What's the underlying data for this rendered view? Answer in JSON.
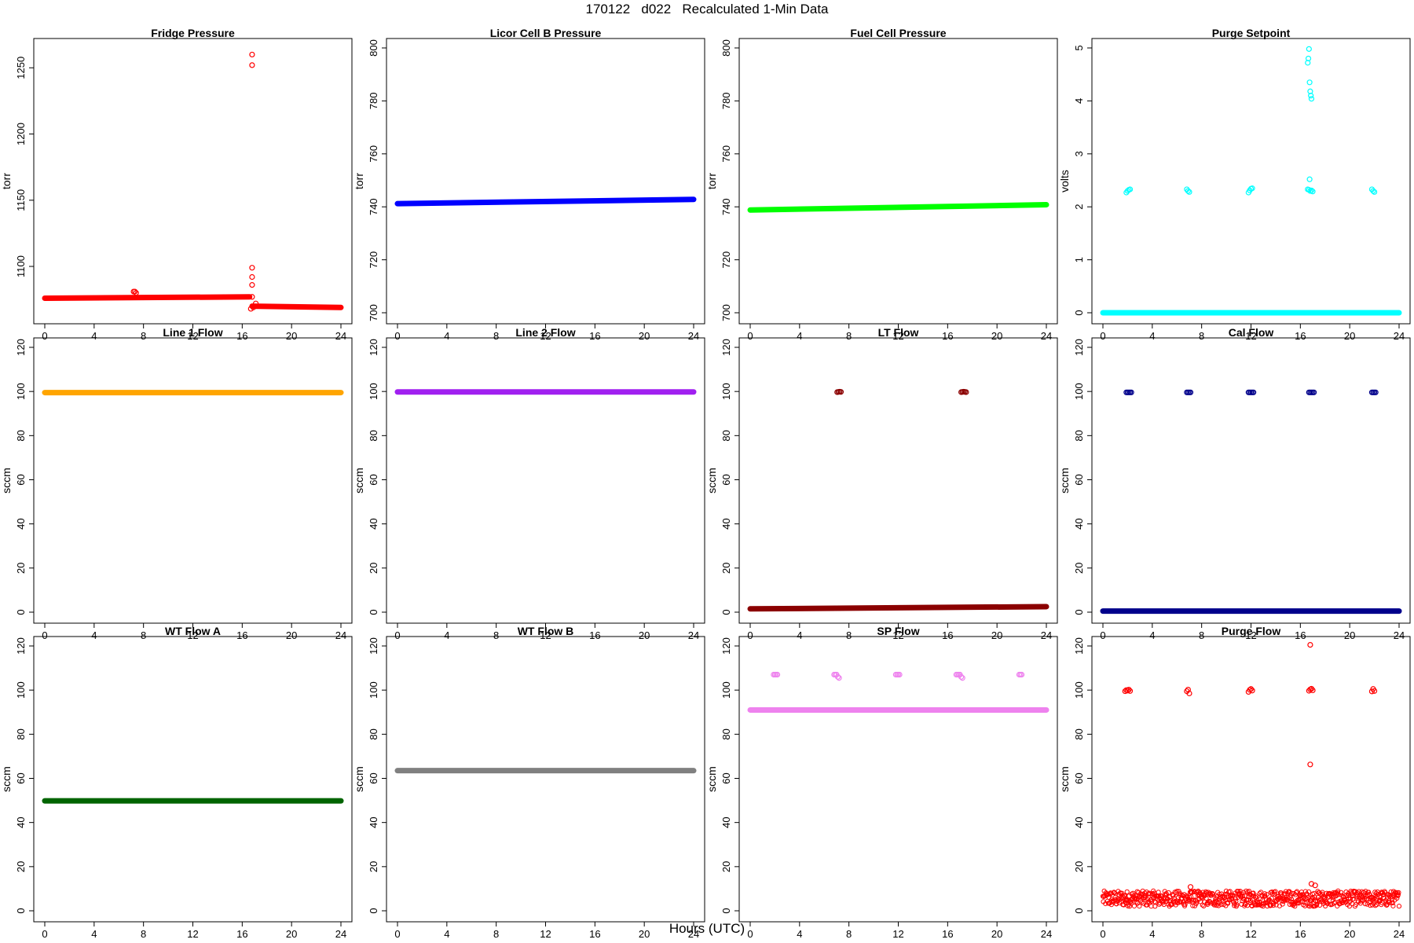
{
  "figure": {
    "title": "170122   d022   Recalculated 1-Min Data",
    "xlabel": "Hours (UTC)"
  },
  "chart_data": [
    {
      "type": "scatter",
      "title": "Fridge Pressure",
      "xlabel": "",
      "ylabel": "torr",
      "xlim": [
        0,
        24
      ],
      "ylim": [
        1065,
        1265
      ],
      "xticks": [
        0,
        4,
        8,
        12,
        16,
        20,
        24
      ],
      "yticks": [
        1100,
        1150,
        1200,
        1250
      ],
      "color": "#ff0000",
      "marker": "open-circle",
      "series": [
        {
          "kind": "band",
          "segments": [
            {
              "x": [
                0,
                16.6
              ],
              "y": [
                1076,
                1077
              ]
            },
            {
              "x": [
                16.8,
                24
              ],
              "y": [
                1070,
                1069
              ]
            }
          ]
        },
        {
          "kind": "points",
          "x": [
            7.2,
            7.3,
            7.4,
            16.8,
            16.8,
            16.8,
            16.8,
            16.8,
            16.8,
            16.7,
            16.9,
            17.1
          ],
          "y": [
            1081,
            1081,
            1080,
            1260,
            1252,
            1099,
            1092,
            1086,
            1077,
            1068,
            1069,
            1072
          ]
        }
      ]
    },
    {
      "type": "scatter",
      "title": "Licor Cell B Pressure",
      "xlabel": "",
      "ylabel": "torr",
      "xlim": [
        0,
        24
      ],
      "ylim": [
        700,
        800
      ],
      "xticks": [
        0,
        4,
        8,
        12,
        16,
        20,
        24
      ],
      "yticks": [
        700,
        720,
        740,
        760,
        780,
        800
      ],
      "color": "#0000ff",
      "marker": "open-circle",
      "series": [
        {
          "kind": "band",
          "segments": [
            {
              "x": [
                0,
                24
              ],
              "y": [
                741.2,
                742.8
              ]
            }
          ]
        }
      ]
    },
    {
      "type": "scatter",
      "title": "Fuel Cell Pressure",
      "xlabel": "",
      "ylabel": "torr",
      "xlim": [
        0,
        24
      ],
      "ylim": [
        700,
        800
      ],
      "xticks": [
        0,
        4,
        8,
        12,
        16,
        20,
        24
      ],
      "yticks": [
        700,
        720,
        740,
        760,
        780,
        800
      ],
      "color": "#00ff00",
      "marker": "open-circle",
      "series": [
        {
          "kind": "band",
          "segments": [
            {
              "x": [
                0,
                24
              ],
              "y": [
                738.8,
                740.8
              ]
            }
          ]
        }
      ]
    },
    {
      "type": "scatter",
      "title": "Purge Setpoint",
      "xlabel": "",
      "ylabel": "volts",
      "xlim": [
        0,
        24
      ],
      "ylim": [
        0,
        5
      ],
      "xticks": [
        0,
        4,
        8,
        12,
        16,
        20,
        24
      ],
      "yticks": [
        0,
        1,
        2,
        3,
        4,
        5
      ],
      "color": "#00ffff",
      "marker": "open-circle",
      "series": [
        {
          "kind": "band",
          "segments": [
            {
              "x": [
                0,
                24
              ],
              "y": [
                0,
                0
              ]
            }
          ]
        },
        {
          "kind": "points",
          "x": [
            1.9,
            2.0,
            2.1,
            2.2,
            6.8,
            6.9,
            7.0,
            11.8,
            11.9,
            12.0,
            12.1,
            16.6,
            16.7,
            16.8,
            16.9,
            17.0,
            16.6,
            16.65,
            16.7,
            16.75,
            16.8,
            16.85,
            16.9,
            16.75,
            21.8,
            21.9,
            22.0
          ],
          "y": [
            2.27,
            2.3,
            2.32,
            2.33,
            2.33,
            2.3,
            2.28,
            2.27,
            2.31,
            2.34,
            2.35,
            2.33,
            2.32,
            2.3,
            2.31,
            2.29,
            4.72,
            4.8,
            4.98,
            4.35,
            4.18,
            4.1,
            4.04,
            2.52,
            2.33,
            2.3,
            2.28
          ]
        }
      ]
    },
    {
      "type": "scatter",
      "title": "Line 1 Flow",
      "xlabel": "",
      "ylabel": "sccm",
      "xlim": [
        0,
        24
      ],
      "ylim": [
        0,
        120
      ],
      "xticks": [
        0,
        4,
        8,
        12,
        16,
        20,
        24
      ],
      "yticks": [
        0,
        20,
        40,
        60,
        80,
        100,
        120
      ],
      "color": "#ffa500",
      "marker": "open-circle",
      "series": [
        {
          "kind": "band",
          "segments": [
            {
              "x": [
                0,
                24
              ],
              "y": [
                99.5,
                99.5
              ]
            }
          ]
        }
      ]
    },
    {
      "type": "scatter",
      "title": "Line 2 Flow",
      "xlabel": "",
      "ylabel": "sccm",
      "xlim": [
        0,
        24
      ],
      "ylim": [
        0,
        120
      ],
      "xticks": [
        0,
        4,
        8,
        12,
        16,
        20,
        24
      ],
      "yticks": [
        0,
        20,
        40,
        60,
        80,
        100,
        120
      ],
      "color": "#a020f0",
      "marker": "open-circle",
      "series": [
        {
          "kind": "band",
          "segments": [
            {
              "x": [
                0,
                24
              ],
              "y": [
                99.8,
                99.8
              ]
            }
          ]
        }
      ]
    },
    {
      "type": "scatter",
      "title": "LT Flow",
      "xlabel": "",
      "ylabel": "sccm",
      "xlim": [
        0,
        24
      ],
      "ylim": [
        0,
        120
      ],
      "xticks": [
        0,
        4,
        8,
        12,
        16,
        20,
        24
      ],
      "yticks": [
        0,
        20,
        40,
        60,
        80,
        100,
        120
      ],
      "color": "#8b0000",
      "marker": "open-circle",
      "series": [
        {
          "kind": "band",
          "segments": [
            {
              "x": [
                0,
                24
              ],
              "y": [
                1.5,
                2.5
              ]
            }
          ]
        },
        {
          "kind": "points",
          "x": [
            7.05,
            7.15,
            7.25,
            7.35,
            17.1,
            17.2,
            17.3,
            17.4,
            17.5
          ],
          "y": [
            99.7,
            99.8,
            99.9,
            99.8,
            99.7,
            99.8,
            99.9,
            99.8,
            99.7
          ]
        }
      ]
    },
    {
      "type": "scatter",
      "title": "Cal Flow",
      "xlabel": "",
      "ylabel": "sccm",
      "xlim": [
        0,
        24
      ],
      "ylim": [
        0,
        120
      ],
      "xticks": [
        0,
        4,
        8,
        12,
        16,
        20,
        24
      ],
      "yticks": [
        0,
        20,
        40,
        60,
        80,
        100,
        120
      ],
      "color": "#00008b",
      "marker": "open-circle",
      "series": [
        {
          "kind": "band",
          "segments": [
            {
              "x": [
                0,
                24
              ],
              "y": [
                0.5,
                0.5
              ]
            }
          ]
        },
        {
          "kind": "points",
          "x": [
            1.9,
            2.0,
            2.1,
            2.2,
            2.3,
            6.8,
            6.9,
            7.0,
            7.1,
            11.8,
            11.9,
            12.0,
            12.1,
            12.2,
            16.7,
            16.8,
            16.9,
            17.0,
            17.1,
            21.8,
            21.9,
            22.0,
            22.1
          ],
          "y": [
            99.6,
            99.6,
            99.6,
            99.6,
            99.6,
            99.6,
            99.6,
            99.6,
            99.6,
            99.6,
            99.6,
            99.6,
            99.6,
            99.6,
            99.6,
            99.6,
            99.6,
            99.6,
            99.6,
            99.6,
            99.6,
            99.6,
            99.6
          ]
        }
      ]
    },
    {
      "type": "scatter",
      "title": "WT Flow A",
      "xlabel": "",
      "ylabel": "sccm",
      "xlim": [
        0,
        24
      ],
      "ylim": [
        0,
        120
      ],
      "xticks": [
        0,
        4,
        8,
        12,
        16,
        20,
        24
      ],
      "yticks": [
        0,
        20,
        40,
        60,
        80,
        100,
        120
      ],
      "color": "#006400",
      "marker": "open-circle",
      "series": [
        {
          "kind": "band",
          "segments": [
            {
              "x": [
                0,
                24
              ],
              "y": [
                49.8,
                49.8
              ]
            }
          ]
        }
      ]
    },
    {
      "type": "scatter",
      "title": "WT Flow B",
      "xlabel": "",
      "ylabel": "sccm",
      "xlim": [
        0,
        24
      ],
      "ylim": [
        0,
        120
      ],
      "xticks": [
        0,
        4,
        8,
        12,
        16,
        20,
        24
      ],
      "yticks": [
        0,
        20,
        40,
        60,
        80,
        100,
        120
      ],
      "color": "#808080",
      "marker": "open-circle",
      "series": [
        {
          "kind": "band",
          "segments": [
            {
              "x": [
                0,
                24
              ],
              "y": [
                63.5,
                63.5
              ]
            }
          ]
        }
      ]
    },
    {
      "type": "scatter",
      "title": "SP Flow",
      "xlabel": "",
      "ylabel": "sccm",
      "xlim": [
        0,
        24
      ],
      "ylim": [
        0,
        120
      ],
      "xticks": [
        0,
        4,
        8,
        12,
        16,
        20,
        24
      ],
      "yticks": [
        0,
        20,
        40,
        60,
        80,
        100,
        120
      ],
      "color": "#ee82ee",
      "marker": "open-circle",
      "series": [
        {
          "kind": "band",
          "segments": [
            {
              "x": [
                0,
                24
              ],
              "y": [
                91,
                91
              ]
            }
          ]
        },
        {
          "kind": "points",
          "x": [
            1.9,
            2.0,
            2.1,
            2.2,
            6.8,
            6.9,
            7.0,
            7.1,
            7.2,
            11.8,
            11.9,
            12.0,
            12.1,
            16.7,
            16.8,
            16.9,
            17.0,
            17.1,
            17.2,
            21.8,
            21.9,
            22.0
          ],
          "y": [
            107,
            107,
            107,
            107,
            107,
            107,
            107,
            106,
            105.5,
            107,
            107,
            107,
            107,
            107,
            107,
            107,
            107,
            106,
            105.5,
            107,
            107,
            107
          ]
        }
      ]
    },
    {
      "type": "scatter",
      "title": "Purge Flow",
      "xlabel": "",
      "ylabel": "sccm",
      "xlim": [
        0,
        24
      ],
      "ylim": [
        0,
        120
      ],
      "xticks": [
        0,
        4,
        8,
        12,
        16,
        20,
        24
      ],
      "yticks": [
        0,
        20,
        40,
        60,
        80,
        100,
        120
      ],
      "color": "#ff0000",
      "marker": "open-circle",
      "series": [
        {
          "kind": "noisy-band",
          "segments": [
            {
              "x": [
                0,
                24
              ],
              "y": [
                5.5,
                5.5
              ],
              "spread": 3.5
            }
          ]
        },
        {
          "kind": "points",
          "x": [
            1.8,
            1.9,
            2.0,
            2.1,
            2.2,
            6.8,
            6.9,
            7.0,
            11.8,
            11.9,
            12.0,
            12.1,
            16.7,
            16.8,
            16.9,
            17.0,
            16.8,
            16.8,
            21.8,
            21.9,
            22.0,
            7.1,
            7.2,
            16.9,
            17.2
          ],
          "y": [
            99.5,
            100,
            99.8,
            100.2,
            99.6,
            99.5,
            100.2,
            98.5,
            99.2,
            100.1,
            100.5,
            99.8,
            99.7,
            100.3,
            100.6,
            99.9,
            120.5,
            66.3,
            99.4,
            100.5,
            99.6,
            10.8,
            8.5,
            12.2,
            11.5
          ]
        }
      ]
    }
  ]
}
